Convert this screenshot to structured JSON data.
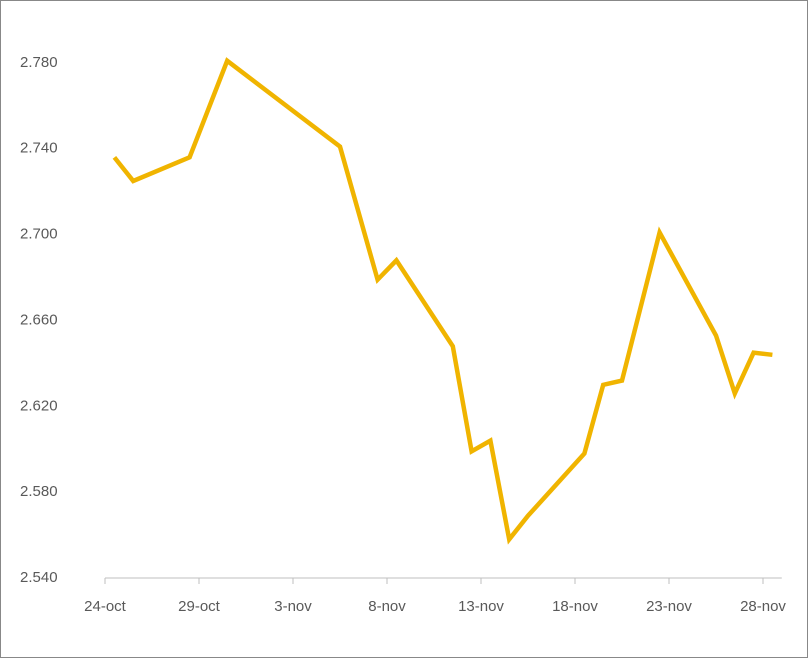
{
  "chart_data": {
    "type": "line",
    "x": [
      "24-oct",
      "25-oct",
      "28-oct",
      "30-oct",
      "5-nov",
      "7-nov",
      "8-nov",
      "11-nov",
      "12-nov",
      "13-nov",
      "14-nov",
      "15-nov",
      "18-nov",
      "19-nov",
      "20-nov",
      "22-nov",
      "25-nov",
      "26-nov",
      "27-nov",
      "28-nov"
    ],
    "series": [
      {
        "color": "#f0b400",
        "values": [
          2.736,
          2.725,
          2.736,
          2.781,
          2.741,
          2.679,
          2.688,
          2.648,
          2.599,
          2.604,
          2.558,
          2.569,
          2.598,
          2.63,
          2.632,
          2.701,
          2.653,
          2.626,
          2.645,
          2.644
        ]
      }
    ],
    "xticks": [
      "24-oct",
      "29-oct",
      "3-nov",
      "8-nov",
      "13-nov",
      "18-nov",
      "23-nov",
      "28-nov"
    ],
    "ylim": [
      2.54,
      2.8
    ],
    "yticks": [
      {
        "value": 2.54,
        "label": "2.540"
      },
      {
        "value": 2.58,
        "label": "2.580"
      },
      {
        "value": 2.62,
        "label": "2.620"
      },
      {
        "value": 2.66,
        "label": "2.660"
      },
      {
        "value": 2.7,
        "label": "2.700"
      },
      {
        "value": 2.74,
        "label": "2.740"
      },
      {
        "value": 2.78,
        "label": "2.780"
      }
    ],
    "grid": false
  }
}
